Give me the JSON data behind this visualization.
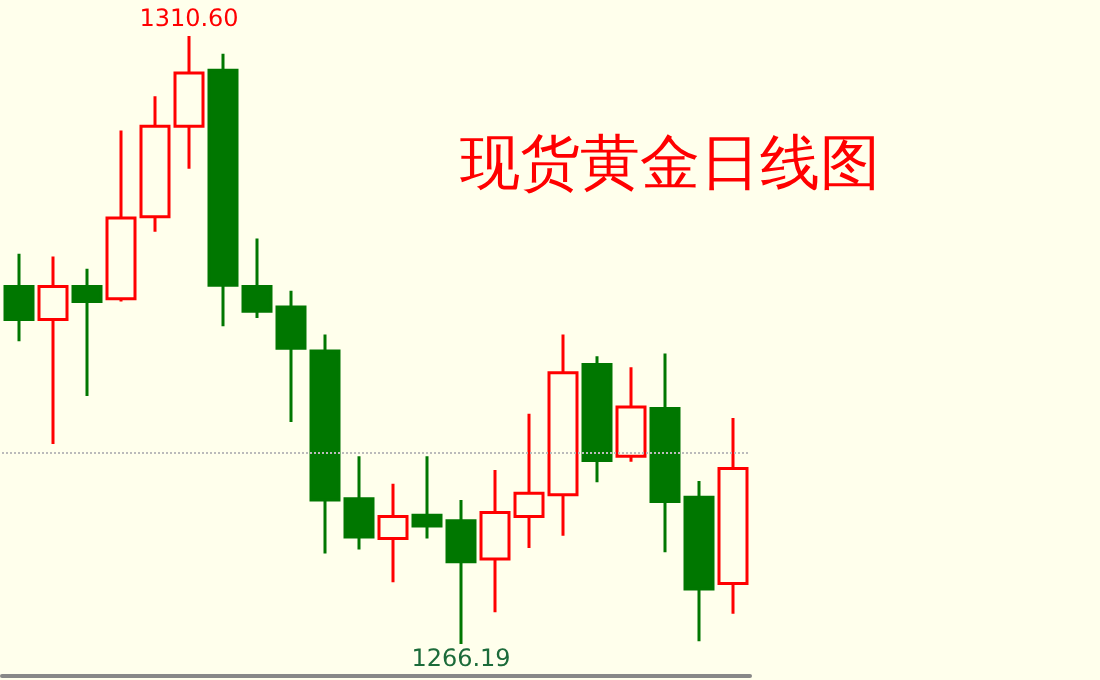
{
  "chart_data": {
    "type": "candlestick",
    "title": "现货黄金日线图",
    "categories": [
      null,
      null,
      null,
      null,
      null,
      null,
      null,
      null,
      null,
      null,
      null,
      null,
      null,
      null,
      null,
      null,
      null,
      null,
      null,
      null,
      null,
      null
    ],
    "series": [
      {
        "colors": [
          "#007700",
          "#ff0000",
          "#007700",
          "#ff0000",
          "#ff0000",
          "#ff0000",
          "#007700",
          "#007700",
          "#007700",
          "#007700",
          "#007700",
          "#ff0000",
          "#007700",
          "#007700",
          "#ff0000",
          "#ff0000",
          "#ff0000",
          "#007700",
          "#ff0000",
          "#007700",
          "#007700",
          "#ff0000"
        ],
        "ohlc": [
          [
            1292.3,
            1294.7,
            1288.3,
            1289.9
          ],
          [
            1289.9,
            1294.5,
            1280.8,
            1292.3
          ],
          [
            1292.3,
            1293.6,
            1284.3,
            1291.2
          ],
          [
            1291.4,
            1303.7,
            1291.2,
            1297.3
          ],
          [
            1297.4,
            1306.2,
            1296.3,
            1304.0
          ],
          [
            1304.0,
            1310.6,
            1300.9,
            1307.9
          ],
          [
            1308.1,
            1309.3,
            1289.4,
            1292.4
          ],
          [
            1292.3,
            1295.8,
            1290.0,
            1290.5
          ],
          [
            1290.8,
            1292.0,
            1282.4,
            1287.8
          ],
          [
            1287.6,
            1288.8,
            1272.8,
            1276.7
          ],
          [
            1276.8,
            1279.9,
            1273.1,
            1274.0
          ],
          [
            1273.9,
            1277.9,
            1270.7,
            1275.5
          ],
          [
            1275.6,
            1279.9,
            1273.9,
            1274.8
          ],
          [
            1275.2,
            1276.7,
            1266.19,
            1272.2
          ],
          [
            1272.4,
            1278.9,
            1268.5,
            1275.8
          ],
          [
            1275.5,
            1283.0,
            1273.2,
            1277.2
          ],
          [
            1277.1,
            1288.8,
            1274.1,
            1286.0
          ],
          [
            1286.6,
            1287.2,
            1278.0,
            1279.6
          ],
          [
            1279.9,
            1286.4,
            1279.5,
            1283.5
          ],
          [
            1283.4,
            1287.4,
            1272.9,
            1276.6
          ],
          [
            1276.9,
            1278.1,
            1266.4,
            1270.2
          ],
          [
            1270.6,
            1282.7,
            1268.4,
            1279.0
          ]
        ]
      }
    ],
    "annotations": [
      {
        "text": "1310.60",
        "y": 1310.6
      },
      {
        "text": "1266.19",
        "y": 1266.19
      }
    ],
    "ref_lines": [
      {
        "axis": "y",
        "value": 1280.2,
        "color": "#bbbbbb",
        "line_style": "dotted"
      }
    ]
  }
}
